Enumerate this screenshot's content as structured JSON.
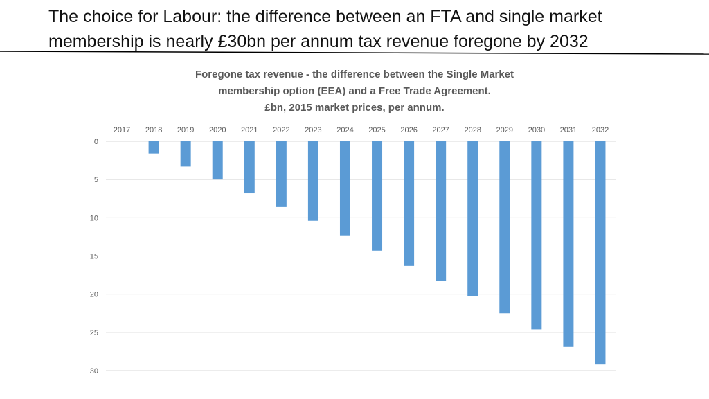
{
  "slide": {
    "title_line1": "The choice for Labour: the difference between an FTA and single market",
    "title_line2": "membership is nearly £30bn per annum tax revenue foregone by 2032"
  },
  "chart_data": {
    "type": "bar",
    "orientation": "vertical",
    "reversed_y_axis": true,
    "x_axis_position": "top",
    "title_lines": [
      "Foregone tax revenue - the difference between the Single Market",
      "membership option (EEA) and a Free Trade Agreement.",
      "£bn, 2015 market prices, per annum."
    ],
    "xlabel": "",
    "ylabel": "",
    "categories": [
      "2017",
      "2018",
      "2019",
      "2020",
      "2021",
      "2022",
      "2023",
      "2024",
      "2025",
      "2026",
      "2027",
      "2028",
      "2029",
      "2030",
      "2031",
      "2032"
    ],
    "series": [
      {
        "values": [
          0,
          1.6,
          3.3,
          5.0,
          6.8,
          8.6,
          10.4,
          12.3,
          14.3,
          16.3,
          18.3,
          20.3,
          22.5,
          24.6,
          26.9,
          29.2
        ]
      }
    ],
    "ylim": [
      0,
      30
    ],
    "yticks": [
      0,
      5,
      10,
      15,
      20,
      25,
      30
    ],
    "grid": true,
    "legend": "none",
    "bar_color": "#5b9bd5",
    "grid_color": "#d9d9d9"
  }
}
